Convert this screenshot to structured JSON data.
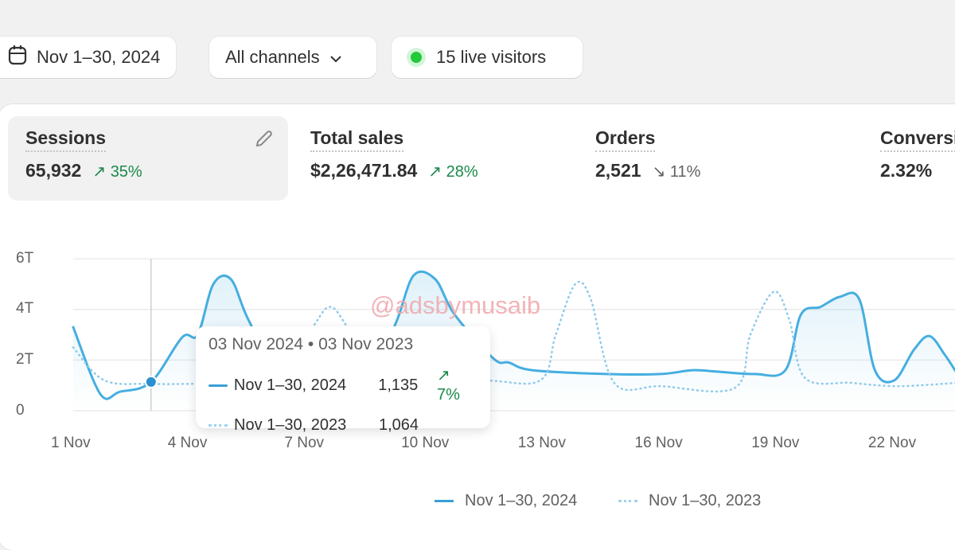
{
  "filters": {
    "date_range": "Nov 1–30, 2024",
    "channel": "All channels",
    "live_visitors": "15 live visitors"
  },
  "metrics": [
    {
      "label": "Sessions",
      "value": "65,932",
      "delta": "35%",
      "direction": "up"
    },
    {
      "label": "Total sales",
      "value": "$2,26,471.84",
      "delta": "28%",
      "direction": "up"
    },
    {
      "label": "Orders",
      "value": "2,521",
      "delta": "11%",
      "direction": "down"
    },
    {
      "label": "Conversion rate",
      "value": "2.32%"
    }
  ],
  "watermark": "@adsbymusaib",
  "tooltip": {
    "title": "03 Nov 2024 • 03 Nov 2023",
    "rows": [
      {
        "label": "Nov 1–30, 2024",
        "value": "1,135",
        "delta": "7%"
      },
      {
        "label": "Nov 1–30, 2023",
        "value": "1,064"
      }
    ]
  },
  "colors": {
    "series": "#4fb3e0",
    "up": "#1a8a4b",
    "live": "#22c93a"
  },
  "chart_data": {
    "type": "line",
    "ylabel": "",
    "xlabel": "",
    "yticks": [
      "0",
      "2T",
      "4T",
      "6T"
    ],
    "ylim": [
      0,
      6
    ],
    "xticks": [
      {
        "day": 1,
        "label": "1 Nov"
      },
      {
        "day": 4,
        "label": "4 Nov"
      },
      {
        "day": 7,
        "label": "7 Nov"
      },
      {
        "day": 10,
        "label": "10 Nov"
      },
      {
        "day": 13,
        "label": "13 Nov"
      },
      {
        "day": 16,
        "label": "16 Nov"
      },
      {
        "day": 19,
        "label": "19 Nov"
      },
      {
        "day": 22,
        "label": "22 Nov"
      }
    ],
    "series": [
      {
        "name": "Nov 1–30, 2024",
        "style": "solid",
        "points": [
          [
            1,
            3.3
          ],
          [
            1.7,
            0.65
          ],
          [
            2.2,
            0.75
          ],
          [
            3,
            1.135
          ],
          [
            3.8,
            2.9
          ],
          [
            4.2,
            3.0
          ],
          [
            4.6,
            5.0
          ],
          [
            5.05,
            5.2
          ],
          [
            5.5,
            3.6
          ],
          [
            6.3,
            1.5
          ],
          [
            7.5,
            1.4
          ],
          [
            8.7,
            1.6
          ],
          [
            9.3,
            3.5
          ],
          [
            9.75,
            5.35
          ],
          [
            10.3,
            5.2
          ],
          [
            10.8,
            3.8
          ],
          [
            11.8,
            2.06
          ],
          [
            12.2,
            1.9
          ],
          [
            12.8,
            1.6
          ],
          [
            14.7,
            1.45
          ],
          [
            16.1,
            1.45
          ],
          [
            16.9,
            1.6
          ],
          [
            17.5,
            1.55
          ],
          [
            18.5,
            1.45
          ],
          [
            19.3,
            1.6
          ],
          [
            19.7,
            3.8
          ],
          [
            20.2,
            4.1
          ],
          [
            20.7,
            4.5
          ],
          [
            21.2,
            4.4
          ],
          [
            21.6,
            1.6
          ],
          [
            22.1,
            1.2
          ],
          [
            22.6,
            2.4
          ],
          [
            23.0,
            2.95
          ],
          [
            23.4,
            2.2
          ],
          [
            23.7,
            1.5
          ]
        ]
      },
      {
        "name": "Nov 1–30, 2023",
        "style": "dotted",
        "points": [
          [
            1,
            2.5
          ],
          [
            1.8,
            1.2
          ],
          [
            3,
            1.064
          ],
          [
            4.1,
            1.06
          ],
          [
            6.3,
            1.1
          ],
          [
            7.2,
            3.4
          ],
          [
            7.6,
            4.1
          ],
          [
            8,
            3.4
          ],
          [
            8.8,
            1.2
          ],
          [
            11.5,
            1.2
          ],
          [
            13,
            1.2
          ],
          [
            13.4,
            3.0
          ],
          [
            13.9,
            5.0
          ],
          [
            14.3,
            4.4
          ],
          [
            14.9,
            1.1
          ],
          [
            16.1,
            0.97
          ],
          [
            18.0,
            0.9
          ],
          [
            18.4,
            3.0
          ],
          [
            19.0,
            4.7
          ],
          [
            19.4,
            3.6
          ],
          [
            19.8,
            1.3
          ],
          [
            21.0,
            1.1
          ],
          [
            22.2,
            0.97
          ],
          [
            23.7,
            1.1
          ]
        ]
      }
    ],
    "highlight_day": 3,
    "legend": "bottom-center"
  }
}
